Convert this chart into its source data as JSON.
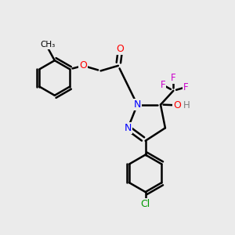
{
  "background_color": "#ebebeb",
  "bond_color": "#000000",
  "bond_width": 1.8,
  "colors": {
    "C": "#000000",
    "N": "#0000ff",
    "O": "#ff0000",
    "F": "#cc00cc",
    "Cl": "#009900",
    "H": "#7f7f7f"
  }
}
